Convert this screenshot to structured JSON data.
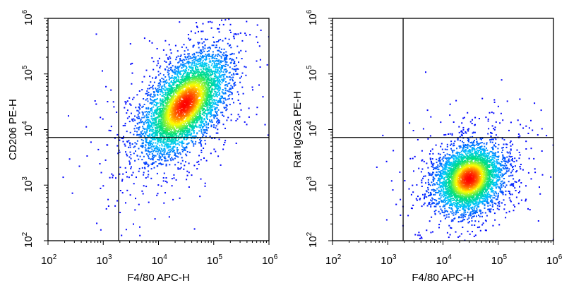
{
  "chart_data": [
    {
      "type": "scatter",
      "subtype": "flow-cytometry-density-dot-plot",
      "title": "",
      "xlabel": "F4/80 APC-H",
      "ylabel": "CD206 PE-H",
      "x_scale": "log",
      "y_scale": "log",
      "xlim": [
        100,
        1000000
      ],
      "ylim": [
        100,
        1000000
      ],
      "x_tick_labels": [
        {
          "base": "10",
          "exp": "2"
        },
        {
          "base": "10",
          "exp": "3"
        },
        {
          "base": "10",
          "exp": "4"
        },
        {
          "base": "10",
          "exp": "5"
        },
        {
          "base": "10",
          "exp": "6"
        }
      ],
      "y_tick_labels": [
        {
          "base": "10",
          "exp": "2"
        },
        {
          "base": "10",
          "exp": "3"
        },
        {
          "base": "10",
          "exp": "4"
        },
        {
          "base": "10",
          "exp": "5"
        },
        {
          "base": "10",
          "exp": "6"
        }
      ],
      "quadrant_gate": {
        "x": 1900,
        "y": 7200
      },
      "population": {
        "center_x": 30000,
        "center_y": 28000,
        "spread_log_x": 0.38,
        "spread_log_y": 0.45,
        "correlation": 0.55
      },
      "grid": false,
      "legend": "none"
    },
    {
      "type": "scatter",
      "subtype": "flow-cytometry-density-dot-plot",
      "title": "",
      "xlabel": "F4/80 APC-H",
      "ylabel": "Rat IgG2a PE-H",
      "x_scale": "log",
      "y_scale": "log",
      "xlim": [
        100,
        1000000
      ],
      "ylim": [
        100,
        1000000
      ],
      "x_tick_labels": [
        {
          "base": "10",
          "exp": "2"
        },
        {
          "base": "10",
          "exp": "3"
        },
        {
          "base": "10",
          "exp": "4"
        },
        {
          "base": "10",
          "exp": "5"
        },
        {
          "base": "10",
          "exp": "6"
        }
      ],
      "y_tick_labels": [
        {
          "base": "10",
          "exp": "2"
        },
        {
          "base": "10",
          "exp": "3"
        },
        {
          "base": "10",
          "exp": "4"
        },
        {
          "base": "10",
          "exp": "5"
        },
        {
          "base": "10",
          "exp": "6"
        }
      ],
      "quadrant_gate": {
        "x": 1900,
        "y": 7200
      },
      "population": {
        "center_x": 30000,
        "center_y": 1300,
        "spread_log_x": 0.3,
        "spread_log_y": 0.3,
        "correlation": 0.2
      },
      "grid": false,
      "legend": "none"
    }
  ],
  "colors": {
    "density_low": "#0000ff",
    "density_mid": "#00c8ff",
    "density_midhigh": "#00e07a",
    "density_high": "#ffff00",
    "density_peak": "#ff0000",
    "axis": "#000000",
    "gate_line": "#000000"
  }
}
